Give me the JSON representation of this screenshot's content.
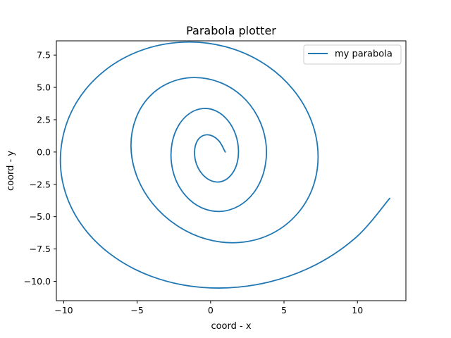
{
  "chart_data": {
    "type": "line",
    "title": "Parabola plotter",
    "xlabel": "coord - x",
    "ylabel": "coord - y",
    "xlim": [
      -10.5,
      13.3
    ],
    "ylim": [
      -11.5,
      8.6
    ],
    "xticks": [
      -10,
      -5,
      0,
      5,
      10
    ],
    "yticks": [
      -10.0,
      -7.5,
      -5.0,
      -2.5,
      0.0,
      2.5,
      5.0,
      7.5
    ],
    "xtick_labels": [
      "−10",
      "−5",
      "0",
      "5",
      "10"
    ],
    "ytick_labels": [
      "−10.0",
      "−7.5",
      "−5.0",
      "−2.5",
      "0.0",
      "2.5",
      "5.0",
      "7.5"
    ],
    "grid": false,
    "legend_position": "top-right",
    "series": [
      {
        "name": "my parabola",
        "color": "#1f77b4",
        "x": [
          1.0,
          0.59,
          0.04,
          -0.51,
          -0.92,
          -1.09,
          -0.98,
          -0.59,
          0.0,
          0.68,
          1.3,
          1.75,
          1.9,
          1.71,
          1.19,
          0.42,
          -0.49,
          -1.41,
          -2.17,
          -2.62,
          -2.66,
          -2.26,
          -1.44,
          -0.32,
          0.96,
          2.19,
          3.17,
          3.72,
          3.75,
          3.2,
          2.13,
          0.65,
          -1.05,
          -2.74,
          -4.16,
          -5.1,
          -5.42,
          -5.03,
          -3.95,
          -2.3,
          -0.27,
          1.93,
          4.03,
          5.76,
          6.92,
          7.32,
          6.88,
          5.6,
          3.58,
          1.0,
          -1.87,
          -4.73,
          -7.24,
          -9.11,
          -10.1,
          -10.09,
          -9.01,
          -6.94,
          -4.05,
          -0.6,
          3.12,
          6.74,
          9.86,
          12.2
        ],
        "y": [
          0.0,
          0.83,
          1.28,
          1.27,
          0.83,
          0.05,
          -0.86,
          -1.68,
          -2.2,
          -2.3,
          -1.9,
          -1.06,
          0.09,
          1.33,
          2.42,
          3.15,
          3.37,
          3.0,
          2.07,
          0.7,
          -0.88,
          -2.42,
          -3.68,
          -4.44,
          -4.56,
          -3.98,
          -2.76,
          -1.06,
          0.86,
          2.75,
          4.33,
          5.38,
          5.76,
          5.39,
          4.29,
          2.56,
          0.43,
          -1.85,
          -3.98,
          -5.68,
          -6.74,
          -7.0,
          -6.39,
          -4.96,
          -2.86,
          -0.32,
          2.36,
          4.86,
          6.88,
          8.15,
          8.5,
          7.86,
          6.27,
          3.87,
          0.92,
          -2.23,
          -5.25,
          -7.8,
          -9.61,
          -10.47,
          -10.26,
          -8.96,
          -6.65,
          -3.58
        ]
      }
    ]
  }
}
